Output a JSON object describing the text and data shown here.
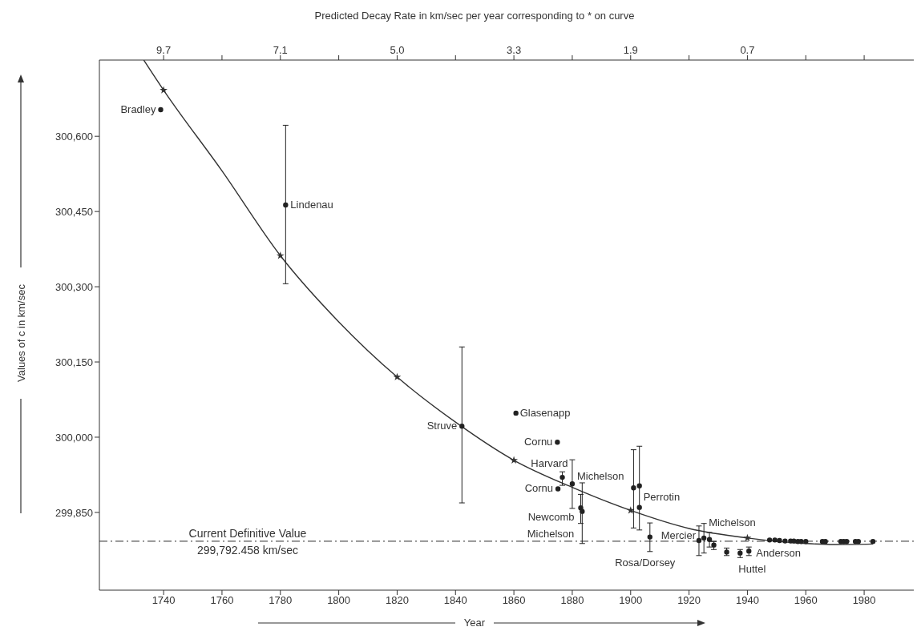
{
  "chart_data": {
    "type": "scatter",
    "xlabel": "Year",
    "ylabel": "Values of c in km/sec",
    "x2label": "Predicted Decay Rate in km/sec per year corresponding to * on curve",
    "xlim": [
      1718,
      1997
    ],
    "xticks": [
      1740,
      1760,
      1780,
      1800,
      1820,
      1840,
      1860,
      1880,
      1900,
      1920,
      1940,
      1960,
      1980
    ],
    "ylim": [
      299695,
      300752
    ],
    "yticks": [
      {
        "value": 299850,
        "label": "299,850"
      },
      {
        "value": 300000,
        "label": "300,000"
      },
      {
        "value": 300150,
        "label": "300,150"
      },
      {
        "value": 300300,
        "label": "300,300"
      },
      {
        "value": 300450,
        "label": "300,450"
      },
      {
        "value": 300600,
        "label": "300,600"
      }
    ],
    "grid": false,
    "series": [
      {
        "type": "line",
        "color": "#333333",
        "marker": "none",
        "x": [
          1733.2,
          1740,
          1760,
          1780,
          1800,
          1820,
          1840,
          1860,
          1880,
          1900,
          1920,
          1940,
          1960,
          1970,
          1983
        ],
        "values": [
          300752,
          300692,
          300531,
          300362,
          300230,
          300120,
          300030,
          299954,
          299900,
          299854,
          299818,
          299799,
          299788,
          299786,
          299787
        ]
      },
      {
        "color": "#333333",
        "marker": "star",
        "x": [
          1740,
          1780,
          1820,
          1860,
          1900,
          1940
        ],
        "values": [
          300692,
          300362,
          300120,
          299954,
          299854,
          299799
        ]
      },
      {
        "color": "#222222",
        "marker": "circle",
        "x": [
          1739,
          1781.8,
          1842.2,
          1860.7,
          1874.9,
          1876.6,
          1875.1,
          1880,
          1882.9,
          1883.4,
          1901,
          1903,
          1903,
          1906.6,
          1923.4,
          1925.1,
          1927,
          1928.5,
          1932.9,
          1937.5,
          1940.5,
          1947.6,
          1949.4,
          1951,
          1952.9,
          1954.8,
          1955.9,
          1957.3,
          1958.4,
          1960,
          1965.7,
          1966.7,
          1972,
          1973,
          1974,
          1977,
          1978,
          1983
        ],
        "values": [
          300653,
          300463,
          300022,
          300048,
          299990,
          299920,
          299897,
          299907,
          299859,
          299852,
          299899,
          299903,
          299860,
          299801,
          299794,
          299799,
          299796,
          299785,
          299771,
          299769,
          299773,
          299795,
          299795,
          299794,
          299793,
          299793,
          299793,
          299792,
          299792,
          299792,
          299792,
          299792,
          299792,
          299792,
          299792,
          299792,
          299792,
          299792
        ],
        "errors": [
          null,
          [
            300306,
            300622
          ],
          [
            299869,
            300180
          ],
          null,
          null,
          [
            299904,
            299931
          ],
          null,
          [
            299858,
            299955
          ],
          [
            299828,
            299886
          ],
          [
            299788,
            299909
          ],
          [
            299819,
            299975
          ],
          [
            299815,
            299982
          ],
          null,
          [
            299772,
            299829
          ],
          [
            299764,
            299823
          ],
          [
            299769,
            299828
          ],
          [
            299781,
            299810
          ],
          [
            299776,
            299792
          ],
          [
            299764,
            299779
          ],
          [
            299760,
            299776
          ],
          [
            299764,
            299781
          ],
          null,
          null,
          null,
          null,
          null,
          null,
          null,
          null,
          null,
          null,
          null,
          null,
          null,
          null,
          null,
          null,
          null
        ]
      }
    ],
    "ref_lines": [
      {
        "axis": "y",
        "value": 299792.458,
        "label": "Current Definitive Value\n299,792.458 km/sec",
        "color": "#555555",
        "line_style": "dashed"
      }
    ],
    "annotations": [
      "9.7",
      "7.1",
      "5.0",
      "3.3",
      "1.9",
      "0.7",
      {
        "text": "Bradley",
        "x": 1739,
        "y": 300653
      },
      {
        "text": "Lindenau",
        "x": 1781.8,
        "y": 300463
      },
      {
        "text": "Struve",
        "x": 1842.2,
        "y": 300022
      },
      {
        "text": "Glasenapp",
        "x": 1860.7,
        "y": 300048
      },
      {
        "text": "Cornu",
        "x": 1874.9,
        "y": 299990
      },
      {
        "text": "Harvard",
        "x": 1876.6,
        "y": 299920
      },
      {
        "text": "Cornu",
        "x": 1875.1,
        "y": 299897
      },
      {
        "text": "Michelson",
        "x": 1880,
        "y": 299907
      },
      {
        "text": "Newcomb",
        "x": 1882.9,
        "y": 299859
      },
      {
        "text": "Michelson",
        "x": 1883.4,
        "y": 299852
      },
      {
        "text": "Perrotin",
        "x": 1903,
        "y": 299860
      },
      {
        "text": "Rosa/Dorsey",
        "x": 1906.6,
        "y": 299801
      },
      {
        "text": "Mercier",
        "x": 1923.4,
        "y": 299794
      },
      {
        "text": "Michelson",
        "x": 1925.1,
        "y": 299799
      },
      {
        "text": "Anderson",
        "x": 1940.5,
        "y": 299773
      },
      {
        "text": "Huttel",
        "x": 1937.5,
        "y": 299769
      }
    ]
  }
}
